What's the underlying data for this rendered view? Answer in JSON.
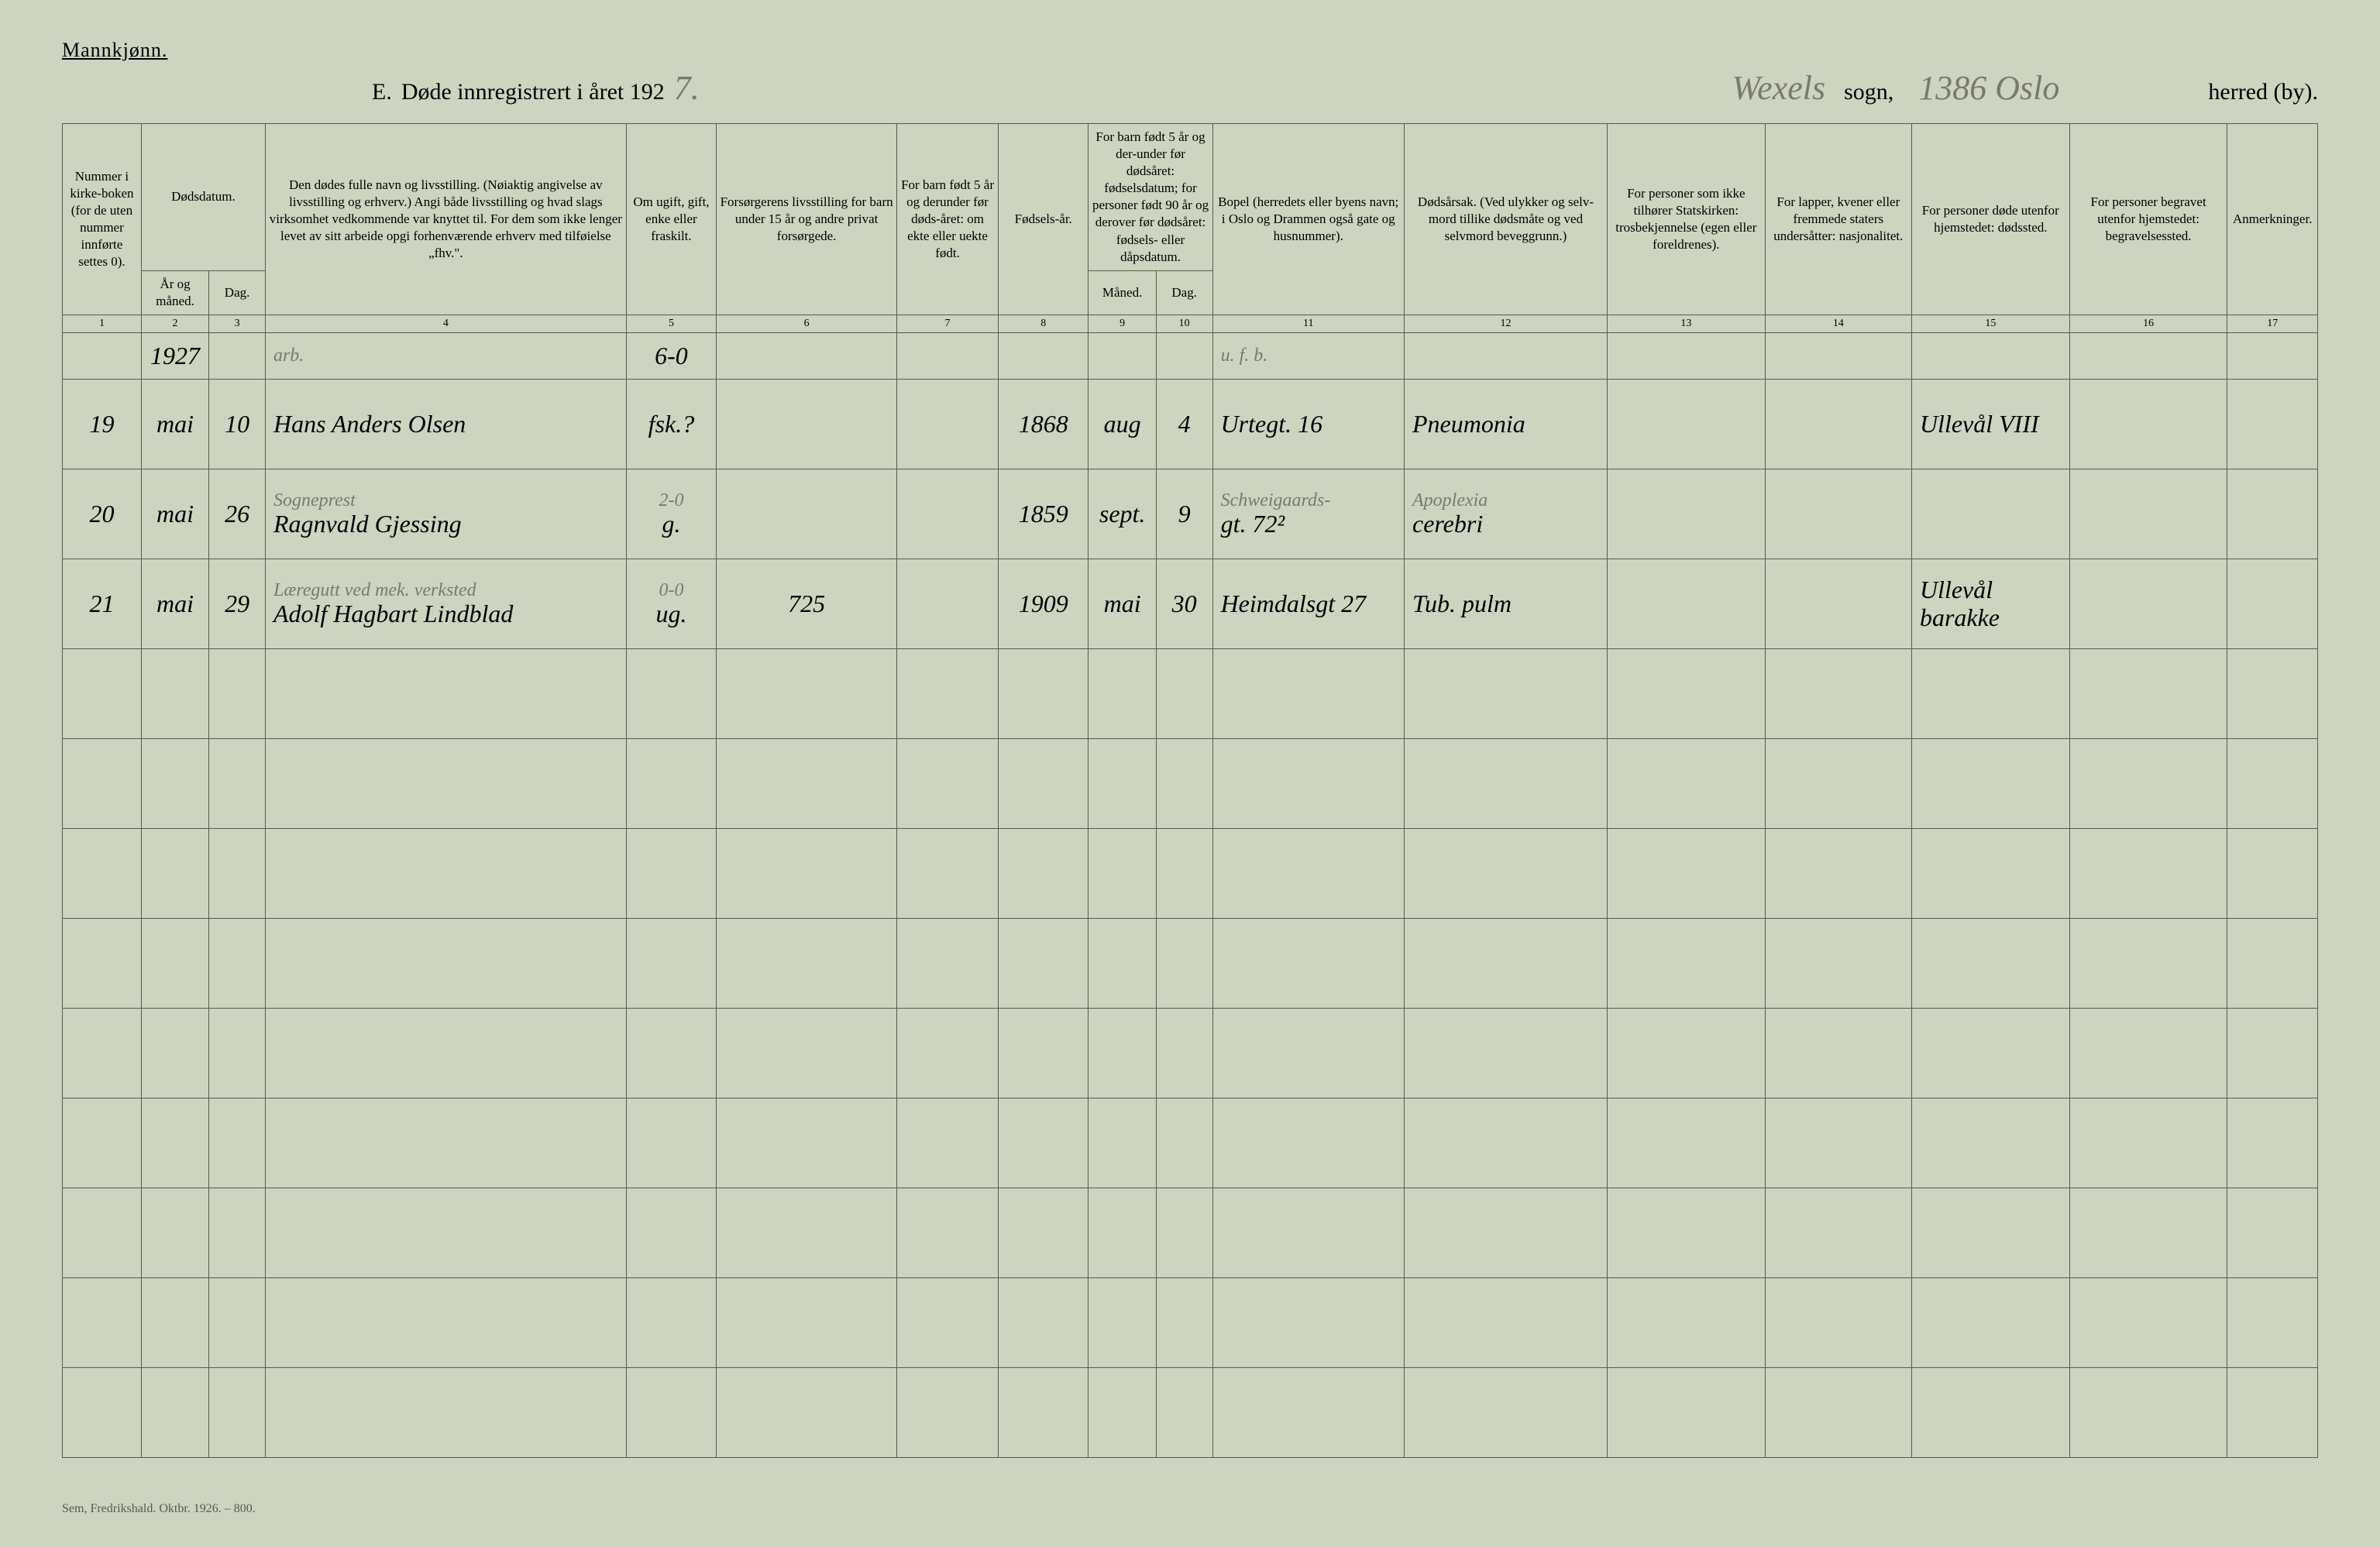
{
  "colors": {
    "paper": "#cdd4c0",
    "ink": "#2a2a22",
    "rule": "#5a5a4a",
    "red": "#b03020",
    "pencil": "#7a7a6a"
  },
  "header": {
    "gender_label": "Mannkjønn.",
    "section_prefix": "E.",
    "title_printed": "Døde innregistrert i året 192",
    "year_suffix_hand": "7.",
    "sogn_hand": "Wexels",
    "sogn_label": "sogn,",
    "herred_hand": "1386 Oslo",
    "herred_label": "herred (by)."
  },
  "columns": {
    "c1": "Nummer i kirke-boken (for de uten nummer innførte settes 0).",
    "c2_top": "Dødsdatum.",
    "c2a": "År og måned.",
    "c2b": "Dag.",
    "c4": "Den dødes fulle navn og livsstilling. (Nøiaktig angivelse av livsstilling og erhverv.) Angi både livsstilling og hvad slags virksomhet vedkommende var knyttet til. For dem som ikke lenger levet av sitt arbeide opgi forhenværende erhverv med tilføielse „fhv.\".",
    "c5": "Om ugift, gift, enke eller fraskilt.",
    "c6": "Forsørgerens livsstilling for barn under 15 år og andre privat forsørgede.",
    "c7": "For barn født 5 år og derunder før døds-året: om ekte eller uekte født.",
    "c8": "Fødsels-år.",
    "c9_top": "For barn født 5 år og der-under før dødsåret: fødselsdatum; for personer født 90 år og derover før dødsåret: fødsels- eller dåpsdatum.",
    "c9a": "Måned.",
    "c9b": "Dag.",
    "c11": "Bopel (herredets eller byens navn; i Oslo og Drammen også gate og husnummer).",
    "c12": "Dødsårsak. (Ved ulykker og selv-mord tillike dødsmåte og ved selvmord beveggrunn.)",
    "c13": "For personer som ikke tilhører Statskirken: trosbekjennelse (egen eller foreldrenes).",
    "c14": "For lapper, kvener eller fremmede staters undersåtter: nasjonalitet.",
    "c15": "For personer døde utenfor hjemstedet: dødssted.",
    "c16": "For personer begravet utenfor hjemstedet: begravelsessted.",
    "c17": "Anmerkninger."
  },
  "colnums": [
    "1",
    "2",
    "3",
    "4",
    "5",
    "6",
    "7",
    "8",
    "9",
    "10",
    "11",
    "12",
    "13",
    "14",
    "15",
    "16",
    "17"
  ],
  "col_widths_pct": [
    3.5,
    3.0,
    2.5,
    16.0,
    4.0,
    8.0,
    4.5,
    4.0,
    3.0,
    2.5,
    8.5,
    9.0,
    7.0,
    6.5,
    7.0,
    7.0,
    4.0
  ],
  "year_row": {
    "num": "",
    "year": "1927",
    "day": "",
    "name_sub": "arb.",
    "name_main": "",
    "marital": "6-0",
    "provider": "",
    "legitimacy": "",
    "birth_year": "",
    "birth_month": "",
    "birth_day": "",
    "address_sub": "u. f. b.",
    "address_main": "",
    "cause": "",
    "faith": "",
    "nationality": "",
    "death_place": "",
    "burial_place": "",
    "remarks": "",
    "tick": "✓"
  },
  "rows": [
    {
      "num": "19",
      "month": "mai",
      "day": "10",
      "name_sub": "",
      "name_main": "Hans Anders Olsen",
      "marital": "fsk.?",
      "provider": "",
      "legitimacy": "",
      "birth_year": "1868",
      "birth_month": "aug",
      "birth_day": "4",
      "address_sub": "",
      "address_main": "Urtegt. 16",
      "cause_sub": "",
      "cause_main": "Pneumonia",
      "faith": "",
      "nationality": "",
      "death_place": "Ullevål VIII",
      "burial_place": "",
      "remarks": "",
      "redx": "✗",
      "tick": ""
    },
    {
      "num": "20",
      "month": "mai",
      "day": "26",
      "name_sub": "Sogneprest",
      "name_main": "Ragnvald Gjessing",
      "marital": "g.",
      "marital_sub": "2-0",
      "provider": "",
      "legitimacy": "",
      "birth_year": "1859",
      "birth_month": "sept.",
      "birth_day": "9",
      "address_sub": "Schweigaards-",
      "address_main": "gt. 72²",
      "cause_sub": "Apoplexia",
      "cause_main": "cerebri",
      "faith": "",
      "nationality": "",
      "death_place": "",
      "burial_place": "",
      "remarks": "",
      "redx": "✗",
      "tick": "✓"
    },
    {
      "num": "21",
      "month": "mai",
      "day": "29",
      "name_sub": "Læregutt ved mek. verksted",
      "name_main": "Adolf Hagbart Lindblad",
      "marital": "ug.",
      "marital_sub": "0-0",
      "provider": "725",
      "legitimacy": "",
      "birth_year": "1909",
      "birth_month": "mai",
      "birth_day": "30",
      "address_sub": "",
      "address_main": "Heimdalsgt 27",
      "cause_sub": "",
      "cause_main": "Tub. pulm",
      "faith": "",
      "nationality": "",
      "death_place": "Ullevål barakke",
      "burial_place": "",
      "remarks": "",
      "redx": "✗",
      "tick": "✓"
    }
  ],
  "empty_row_count": 9,
  "footer": "Sem, Fredrikshald. Oktbr. 1926. – 800."
}
